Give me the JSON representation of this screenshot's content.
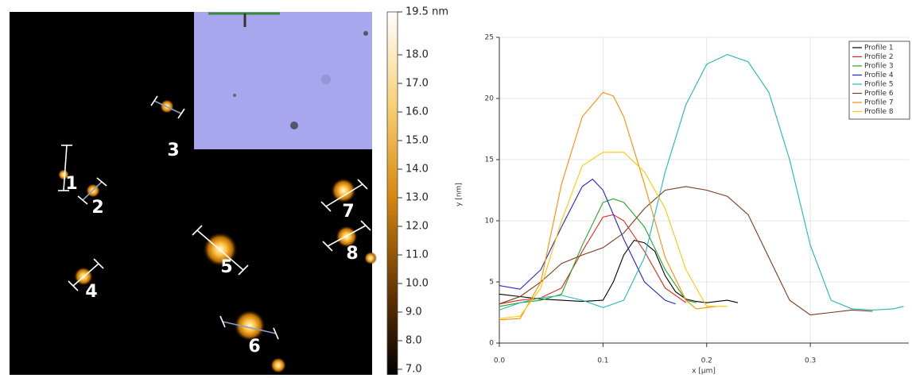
{
  "image_labels": [
    "1",
    "2",
    "3",
    "4",
    "5",
    "6",
    "7",
    "8"
  ],
  "chart_data": [
    {
      "type": "line",
      "xlabel": "x [µm]",
      "ylabel": "y [nm]",
      "xlim": [
        0,
        0.395
      ],
      "ylim": [
        0,
        25
      ],
      "xticks": [
        {
          "value": 0,
          "label": "0.0"
        },
        {
          "value": 0.1,
          "label": "0.1"
        },
        {
          "value": 0.2,
          "label": "0.2"
        },
        {
          "value": 0.3,
          "label": "0.3"
        }
      ],
      "yticks": [
        0,
        5,
        10,
        15,
        20,
        25
      ],
      "grid": true,
      "legend": "upper right",
      "series": [
        {
          "name": "Profile 1",
          "color": "#000000",
          "x": [
            0,
            0.02,
            0.04,
            0.06,
            0.08,
            0.1,
            0.11,
            0.12,
            0.13,
            0.14,
            0.15,
            0.16,
            0.17,
            0.18,
            0.19,
            0.2,
            0.21,
            0.22,
            0.23
          ],
          "values": [
            4.0,
            3.8,
            3.6,
            3.5,
            3.4,
            3.5,
            5.0,
            7.2,
            8.4,
            8.2,
            7.5,
            5.5,
            4.2,
            3.6,
            3.4,
            3.3,
            3.4,
            3.5,
            3.3
          ]
        },
        {
          "name": "Profile 2",
          "color": "#e8231f",
          "x": [
            0,
            0.02,
            0.04,
            0.06,
            0.08,
            0.1,
            0.11,
            0.12,
            0.14,
            0.16,
            0.18
          ],
          "values": [
            3.2,
            3.5,
            3.7,
            4.5,
            7.5,
            10.3,
            10.5,
            10.0,
            7.5,
            4.5,
            3.3
          ]
        },
        {
          "name": "Profile 3",
          "color": "#22a822",
          "x": [
            0,
            0.02,
            0.04,
            0.06,
            0.08,
            0.1,
            0.11,
            0.12,
            0.14,
            0.16,
            0.18,
            0.19
          ],
          "values": [
            3.0,
            3.3,
            3.5,
            4.0,
            8.0,
            11.5,
            11.8,
            11.5,
            9.5,
            6.0,
            3.5,
            3.3
          ]
        },
        {
          "name": "Profile 4",
          "color": "#2222dd",
          "x": [
            0,
            0.02,
            0.04,
            0.06,
            0.08,
            0.09,
            0.1,
            0.12,
            0.14,
            0.16,
            0.17
          ],
          "values": [
            4.7,
            4.4,
            6.0,
            9.5,
            12.8,
            13.4,
            12.5,
            8.5,
            5.0,
            3.5,
            3.2
          ]
        },
        {
          "name": "Profile 5",
          "color": "#1fb8b8",
          "x": [
            0,
            0.02,
            0.04,
            0.06,
            0.08,
            0.1,
            0.12,
            0.14,
            0.16,
            0.18,
            0.2,
            0.22,
            0.24,
            0.26,
            0.28,
            0.3,
            0.32,
            0.34,
            0.36,
            0.38,
            0.39
          ],
          "values": [
            2.7,
            3.3,
            3.7,
            3.9,
            3.5,
            2.9,
            3.5,
            7.0,
            14.0,
            19.5,
            22.8,
            23.6,
            23.0,
            20.5,
            15.0,
            8.0,
            3.5,
            2.8,
            2.7,
            2.8,
            3.0
          ]
        },
        {
          "name": "Profile 6",
          "color": "#7a3a1a",
          "x": [
            0,
            0.02,
            0.04,
            0.06,
            0.08,
            0.1,
            0.12,
            0.14,
            0.16,
            0.18,
            0.2,
            0.22,
            0.24,
            0.26,
            0.28,
            0.3,
            0.32,
            0.34,
            0.36
          ],
          "values": [
            3.2,
            3.8,
            5.0,
            6.5,
            7.2,
            7.8,
            9.0,
            11.0,
            12.5,
            12.8,
            12.5,
            12.0,
            10.5,
            7.0,
            3.5,
            2.3,
            2.5,
            2.7,
            2.6
          ]
        },
        {
          "name": "Profile 7",
          "color": "#ff8c00",
          "x": [
            0,
            0.02,
            0.04,
            0.06,
            0.08,
            0.1,
            0.11,
            0.12,
            0.14,
            0.16,
            0.18,
            0.19,
            0.21
          ],
          "values": [
            1.9,
            2.0,
            5.0,
            13.0,
            18.5,
            20.5,
            20.2,
            18.5,
            13.0,
            7.0,
            3.5,
            2.8,
            3.0
          ]
        },
        {
          "name": "Profile 8",
          "color": "#ffc800",
          "x": [
            0,
            0.02,
            0.04,
            0.06,
            0.08,
            0.1,
            0.12,
            0.14,
            0.16,
            0.18,
            0.2,
            0.22
          ],
          "values": [
            2.0,
            2.2,
            4.5,
            10.0,
            14.5,
            15.6,
            15.6,
            14.0,
            11.0,
            6.0,
            3.0,
            3.0
          ]
        }
      ]
    },
    {
      "type": "colorbar",
      "ylim": [
        7,
        19.5
      ],
      "yticks": [
        {
          "value": 19.5,
          "label": "19.5 nm"
        },
        {
          "value": 18,
          "label": "18.0"
        },
        {
          "value": 17,
          "label": "17.0"
        },
        {
          "value": 16,
          "label": "16.0"
        },
        {
          "value": 15,
          "label": "15.0"
        },
        {
          "value": 14,
          "label": "14.0"
        },
        {
          "value": 13,
          "label": "13.0"
        },
        {
          "value": 12,
          "label": "12.0"
        },
        {
          "value": 11,
          "label": "11.0"
        },
        {
          "value": 10,
          "label": "10.0"
        },
        {
          "value": 9,
          "label": "9.0"
        },
        {
          "value": 8,
          "label": "8.0"
        },
        {
          "value": 7,
          "label": "7.0"
        }
      ]
    }
  ]
}
